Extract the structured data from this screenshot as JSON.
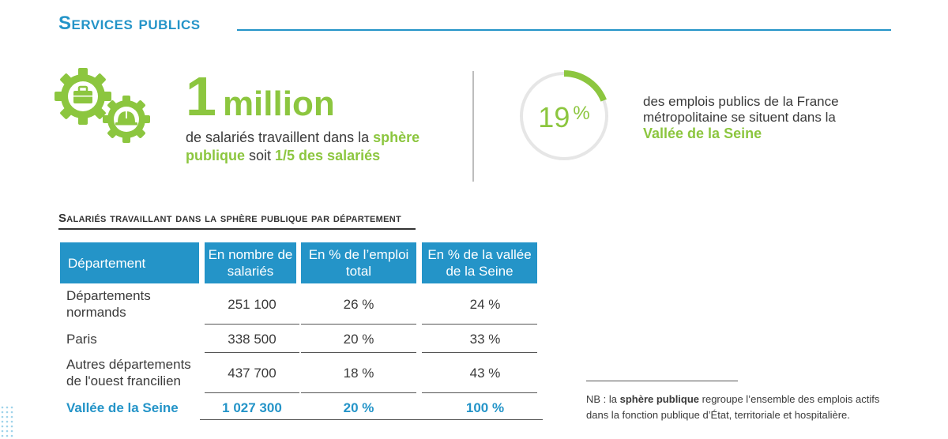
{
  "header": {
    "title": "Services publics"
  },
  "stat_left": {
    "number": "1",
    "unit": "million",
    "desc_part1": "de salariés travaillent dans la ",
    "desc_highlight1": "sphère publique",
    "desc_part2": " soit ",
    "desc_highlight2": "1/5 des salariés"
  },
  "stat_right": {
    "percent_value": "19",
    "percent_sign": "%",
    "ring_fraction": 0.19,
    "desc": "des emplois publics de la France métropolitaine se situent dans la",
    "desc_highlight": "Vallée de la Seine"
  },
  "table": {
    "title": "Salariés travaillant dans la sphère publique par département",
    "headers": [
      "Département",
      "En nombre de salariés",
      "En % de  l’emploi total",
      "En % de la vallée de la Seine"
    ],
    "rows": [
      [
        "Départements normands",
        "251 100",
        "26 %",
        "24 %"
      ],
      [
        "Paris",
        "338 500",
        "20 %",
        "33 %"
      ],
      [
        "Autres départements de l'ouest francilien",
        "437 700",
        "18 %",
        "43 %"
      ]
    ],
    "total": [
      "Vallée de la Seine",
      "1 027 300",
      "20 %",
      "100 %"
    ]
  },
  "note": {
    "prefix": "NB : la ",
    "highlight": "sphère publique",
    "text": " regroupe l’ensemble des emplois actifs dans la fonction publique d’État, territoriale et hospitalière."
  },
  "colors": {
    "accent_blue": "#2494c8",
    "accent_green": "#8cc63f",
    "ring_gray": "#e6e6e6"
  },
  "icons": [
    "gear-briefcase-icon",
    "gear-helmet-icon"
  ]
}
